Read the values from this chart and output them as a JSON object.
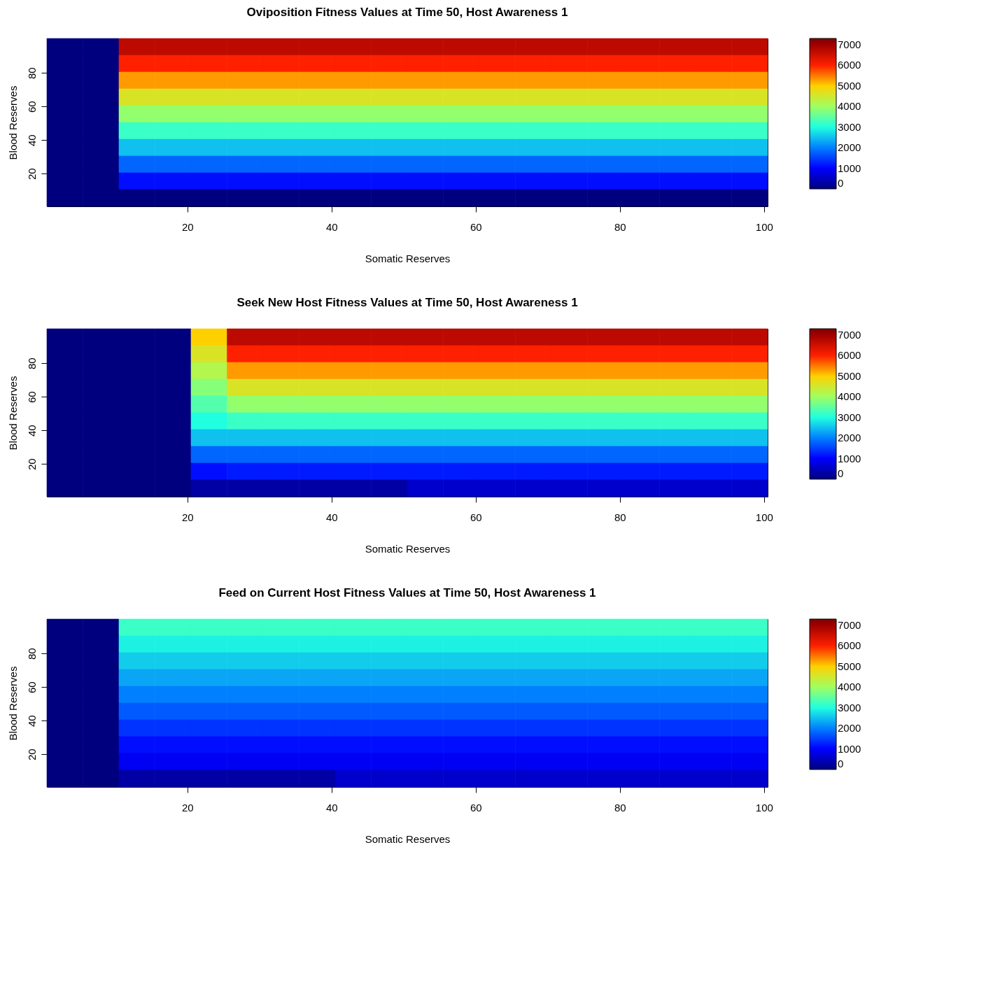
{
  "chart_data": [
    {
      "type": "heatmap",
      "title": "Oviposition Fitness Values at Time 50, Host Awareness 1",
      "xlabel": "Somatic Reserves",
      "ylabel": "Blood Reserves",
      "x": [
        3,
        8,
        13,
        18,
        23,
        28,
        33,
        38,
        43,
        48,
        53,
        58,
        63,
        68,
        73,
        78,
        83,
        88,
        93,
        98
      ],
      "y": [
        95.5,
        85.5,
        75.5,
        65.5,
        55.5,
        45.5,
        35.5,
        25.5,
        15.5,
        5.5
      ],
      "xlim": [
        0.5,
        100.5
      ],
      "ylim": [
        0.5,
        100.5
      ],
      "xticks": [
        20,
        40,
        60,
        80,
        100
      ],
      "yticks": [
        20,
        40,
        60,
        80
      ],
      "clim": [
        0,
        7300
      ],
      "cticks": [
        0,
        1000,
        2000,
        3000,
        4000,
        5000,
        6000,
        7000
      ],
      "colors": [
        "#00007f",
        "#0000ff",
        "#0080ff",
        "#20ffdf",
        "#a0ff60",
        "#ffd000",
        "#ff2000",
        "#9f0000",
        "#7f0000"
      ],
      "grid": false,
      "cells": [
        [
          0,
          0,
          6700,
          6700,
          6700,
          6700,
          6700,
          6700,
          6700,
          6700,
          6700,
          6700,
          6700,
          6700,
          6700,
          6700,
          6700,
          6700,
          6700,
          6700
        ],
        [
          0,
          0,
          6000,
          6000,
          6000,
          6000,
          6000,
          6000,
          6000,
          6000,
          6000,
          6000,
          6000,
          6000,
          6000,
          6000,
          6000,
          6000,
          6000,
          6000
        ],
        [
          0,
          0,
          5300,
          5300,
          5300,
          5300,
          5300,
          5300,
          5300,
          5300,
          5300,
          5300,
          5300,
          5300,
          5300,
          5300,
          5300,
          5300,
          5300,
          5300
        ],
        [
          0,
          0,
          4600,
          4600,
          4600,
          4600,
          4600,
          4600,
          4600,
          4600,
          4600,
          4600,
          4600,
          4600,
          4600,
          4600,
          4600,
          4600,
          4600,
          4600
        ],
        [
          0,
          0,
          3900,
          3900,
          3900,
          3900,
          3900,
          3900,
          3900,
          3900,
          3900,
          3900,
          3900,
          3900,
          3900,
          3900,
          3900,
          3900,
          3900,
          3900
        ],
        [
          0,
          0,
          3200,
          3200,
          3200,
          3200,
          3200,
          3200,
          3200,
          3200,
          3200,
          3200,
          3200,
          3200,
          3200,
          3200,
          3200,
          3200,
          3200,
          3200
        ],
        [
          0,
          0,
          2500,
          2500,
          2500,
          2500,
          2500,
          2500,
          2500,
          2500,
          2500,
          2500,
          2500,
          2500,
          2500,
          2500,
          2500,
          2500,
          2500,
          2500
        ],
        [
          0,
          0,
          1800,
          1800,
          1800,
          1800,
          1800,
          1800,
          1800,
          1800,
          1800,
          1800,
          1800,
          1800,
          1800,
          1800,
          1800,
          1800,
          1800,
          1800
        ],
        [
          0,
          0,
          1100,
          1100,
          1100,
          1100,
          1100,
          1100,
          1100,
          1100,
          1100,
          1100,
          1100,
          1100,
          1100,
          1100,
          1100,
          1100,
          1100,
          1100
        ],
        [
          0,
          0,
          0,
          0,
          0,
          0,
          0,
          0,
          0,
          0,
          0,
          0,
          0,
          0,
          0,
          0,
          0,
          0,
          0,
          0
        ]
      ]
    },
    {
      "type": "heatmap",
      "title": "Seek New Host Fitness Values at Time 50, Host Awareness 1",
      "xlabel": "Somatic Reserves",
      "ylabel": "Blood Reserves",
      "x": [
        3,
        8,
        13,
        18,
        23,
        28,
        33,
        38,
        43,
        48,
        53,
        58,
        63,
        68,
        73,
        78,
        83,
        88,
        93,
        98
      ],
      "y": [
        95.5,
        85.5,
        75.5,
        65.5,
        55.5,
        45.5,
        35.5,
        25.5,
        15.5,
        5.5
      ],
      "xlim": [
        0.5,
        100.5
      ],
      "ylim": [
        0.5,
        100.5
      ],
      "xticks": [
        20,
        40,
        60,
        80,
        100
      ],
      "yticks": [
        20,
        40,
        60,
        80
      ],
      "clim": [
        0,
        7300
      ],
      "cticks": [
        0,
        1000,
        2000,
        3000,
        4000,
        5000,
        6000,
        7000
      ],
      "colors": [
        "#00007f",
        "#0000ff",
        "#0080ff",
        "#20ffdf",
        "#a0ff60",
        "#ffd000",
        "#ff2000",
        "#9f0000",
        "#7f0000"
      ],
      "grid": false,
      "cells": [
        [
          0,
          0,
          0,
          0,
          5000,
          6700,
          6700,
          6700,
          6700,
          6700,
          6700,
          6700,
          6700,
          6700,
          6700,
          6700,
          6700,
          6700,
          6700,
          6700
        ],
        [
          0,
          0,
          0,
          0,
          4600,
          6000,
          6000,
          6000,
          6000,
          6000,
          6000,
          6000,
          6000,
          6000,
          6000,
          6000,
          6000,
          6000,
          6000,
          6000
        ],
        [
          0,
          0,
          0,
          0,
          4200,
          5300,
          5300,
          5300,
          5300,
          5300,
          5300,
          5300,
          5300,
          5300,
          5300,
          5300,
          5300,
          5300,
          5300,
          5300
        ],
        [
          0,
          0,
          0,
          0,
          3800,
          4600,
          4600,
          4600,
          4600,
          4600,
          4600,
          4600,
          4600,
          4600,
          4600,
          4600,
          4600,
          4600,
          4600,
          4600
        ],
        [
          0,
          0,
          0,
          0,
          3400,
          3900,
          3900,
          3900,
          3900,
          3900,
          3900,
          3900,
          3900,
          3900,
          3900,
          3900,
          3900,
          3900,
          3900,
          3900
        ],
        [
          0,
          0,
          0,
          0,
          3000,
          3200,
          3200,
          3200,
          3200,
          3200,
          3200,
          3200,
          3200,
          3200,
          3200,
          3200,
          3200,
          3200,
          3200,
          3200
        ],
        [
          0,
          0,
          0,
          0,
          2500,
          2500,
          2500,
          2500,
          2500,
          2500,
          2500,
          2500,
          2500,
          2500,
          2500,
          2500,
          2500,
          2500,
          2500,
          2500
        ],
        [
          0,
          0,
          0,
          0,
          1800,
          1800,
          1800,
          1800,
          1800,
          1800,
          1800,
          1800,
          1800,
          1800,
          1800,
          1800,
          1800,
          1800,
          1800,
          1800
        ],
        [
          0,
          0,
          0,
          0,
          1100,
          1200,
          1200,
          1200,
          1200,
          1200,
          1200,
          1200,
          1200,
          1200,
          1200,
          1200,
          1200,
          1200,
          1200,
          1200
        ],
        [
          0,
          0,
          0,
          0,
          300,
          300,
          300,
          300,
          300,
          300,
          600,
          600,
          600,
          600,
          600,
          600,
          600,
          600,
          600,
          600
        ]
      ]
    },
    {
      "type": "heatmap",
      "title": "Feed on Current Host Fitness Values at Time 50, Host Awareness 1",
      "xlabel": "Somatic Reserves",
      "ylabel": "Blood Reserves",
      "x": [
        3,
        8,
        13,
        18,
        23,
        28,
        33,
        38,
        43,
        48,
        53,
        58,
        63,
        68,
        73,
        78,
        83,
        88,
        93,
        98
      ],
      "y": [
        95.5,
        85.5,
        75.5,
        65.5,
        55.5,
        45.5,
        35.5,
        25.5,
        15.5,
        5.5
      ],
      "xlim": [
        0.5,
        100.5
      ],
      "ylim": [
        0.5,
        100.5
      ],
      "xticks": [
        20,
        40,
        60,
        80,
        100
      ],
      "yticks": [
        20,
        40,
        60,
        80
      ],
      "clim": [
        0,
        7300
      ],
      "cticks": [
        0,
        1000,
        2000,
        3000,
        4000,
        5000,
        6000,
        7000
      ],
      "colors": [
        "#00007f",
        "#0000ff",
        "#0080ff",
        "#20ffdf",
        "#a0ff60",
        "#ffd000",
        "#ff2000",
        "#9f0000",
        "#7f0000"
      ],
      "grid": false,
      "cells": [
        [
          0,
          0,
          3200,
          3200,
          3200,
          3200,
          3200,
          3200,
          3200,
          3200,
          3200,
          3200,
          3200,
          3200,
          3200,
          3200,
          3200,
          3200,
          3200,
          3200
        ],
        [
          0,
          0,
          2900,
          2900,
          2900,
          2900,
          2900,
          2900,
          2900,
          2900,
          2900,
          2900,
          2900,
          2900,
          2900,
          2900,
          2900,
          2900,
          2900,
          2900
        ],
        [
          0,
          0,
          2600,
          2600,
          2600,
          2600,
          2600,
          2600,
          2600,
          2600,
          2600,
          2600,
          2600,
          2600,
          2600,
          2600,
          2600,
          2600,
          2600,
          2600
        ],
        [
          0,
          0,
          2300,
          2300,
          2300,
          2300,
          2300,
          2300,
          2300,
          2300,
          2300,
          2300,
          2300,
          2300,
          2300,
          2300,
          2300,
          2300,
          2300,
          2300
        ],
        [
          0,
          0,
          2000,
          2000,
          2000,
          2000,
          2000,
          2000,
          2000,
          2000,
          2000,
          2000,
          2000,
          2000,
          2000,
          2000,
          2000,
          2000,
          2000,
          2000
        ],
        [
          0,
          0,
          1700,
          1700,
          1700,
          1700,
          1700,
          1700,
          1700,
          1700,
          1700,
          1700,
          1700,
          1700,
          1700,
          1700,
          1700,
          1700,
          1700,
          1700
        ],
        [
          0,
          0,
          1400,
          1400,
          1400,
          1400,
          1400,
          1400,
          1400,
          1400,
          1400,
          1400,
          1400,
          1400,
          1400,
          1400,
          1400,
          1400,
          1400,
          1400
        ],
        [
          0,
          0,
          1100,
          1100,
          1100,
          1100,
          1100,
          1100,
          1100,
          1100,
          1100,
          1100,
          1100,
          1100,
          1100,
          1100,
          1100,
          1100,
          1100,
          1100
        ],
        [
          0,
          0,
          900,
          900,
          900,
          900,
          900,
          900,
          900,
          900,
          900,
          900,
          900,
          900,
          900,
          900,
          900,
          900,
          900,
          900
        ],
        [
          0,
          0,
          300,
          300,
          300,
          300,
          300,
          300,
          600,
          600,
          600,
          600,
          600,
          600,
          600,
          600,
          600,
          600,
          600,
          600
        ]
      ]
    }
  ]
}
